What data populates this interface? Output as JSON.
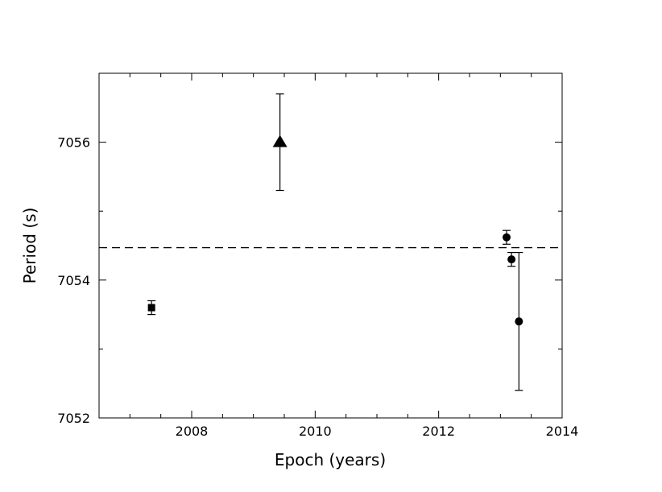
{
  "chart_data": {
    "type": "scatter",
    "title": "",
    "xlabel": "Epoch (years)",
    "ylabel": "Period (s)",
    "xlim": [
      2006.5,
      2014
    ],
    "ylim": [
      7052,
      7057
    ],
    "x_ticks": [
      2008,
      2010,
      2012,
      2014
    ],
    "y_ticks": [
      7052,
      7054,
      7056
    ],
    "x_tick_labels": [
      "2008",
      "2010",
      "2012",
      "2014"
    ],
    "y_tick_labels": [
      "7052",
      "7054",
      "7056"
    ],
    "x_minor_step": 0.5,
    "y_minor_step": 1,
    "grid": false,
    "reference_line": {
      "y": 7054.47,
      "style": "dashed"
    },
    "series": [
      {
        "marker": "square",
        "points": [
          {
            "x": 2007.35,
            "y": 7053.6,
            "err": 0.1
          }
        ]
      },
      {
        "marker": "triangle",
        "points": [
          {
            "x": 2009.43,
            "y": 7056.0,
            "err": 0.7
          }
        ]
      },
      {
        "marker": "circle",
        "points": [
          {
            "x": 2013.1,
            "y": 7054.62,
            "err": 0.1
          },
          {
            "x": 2013.18,
            "y": 7054.3,
            "err": 0.1
          },
          {
            "x": 2013.3,
            "y": 7053.4,
            "err": 1.0
          }
        ]
      }
    ]
  }
}
